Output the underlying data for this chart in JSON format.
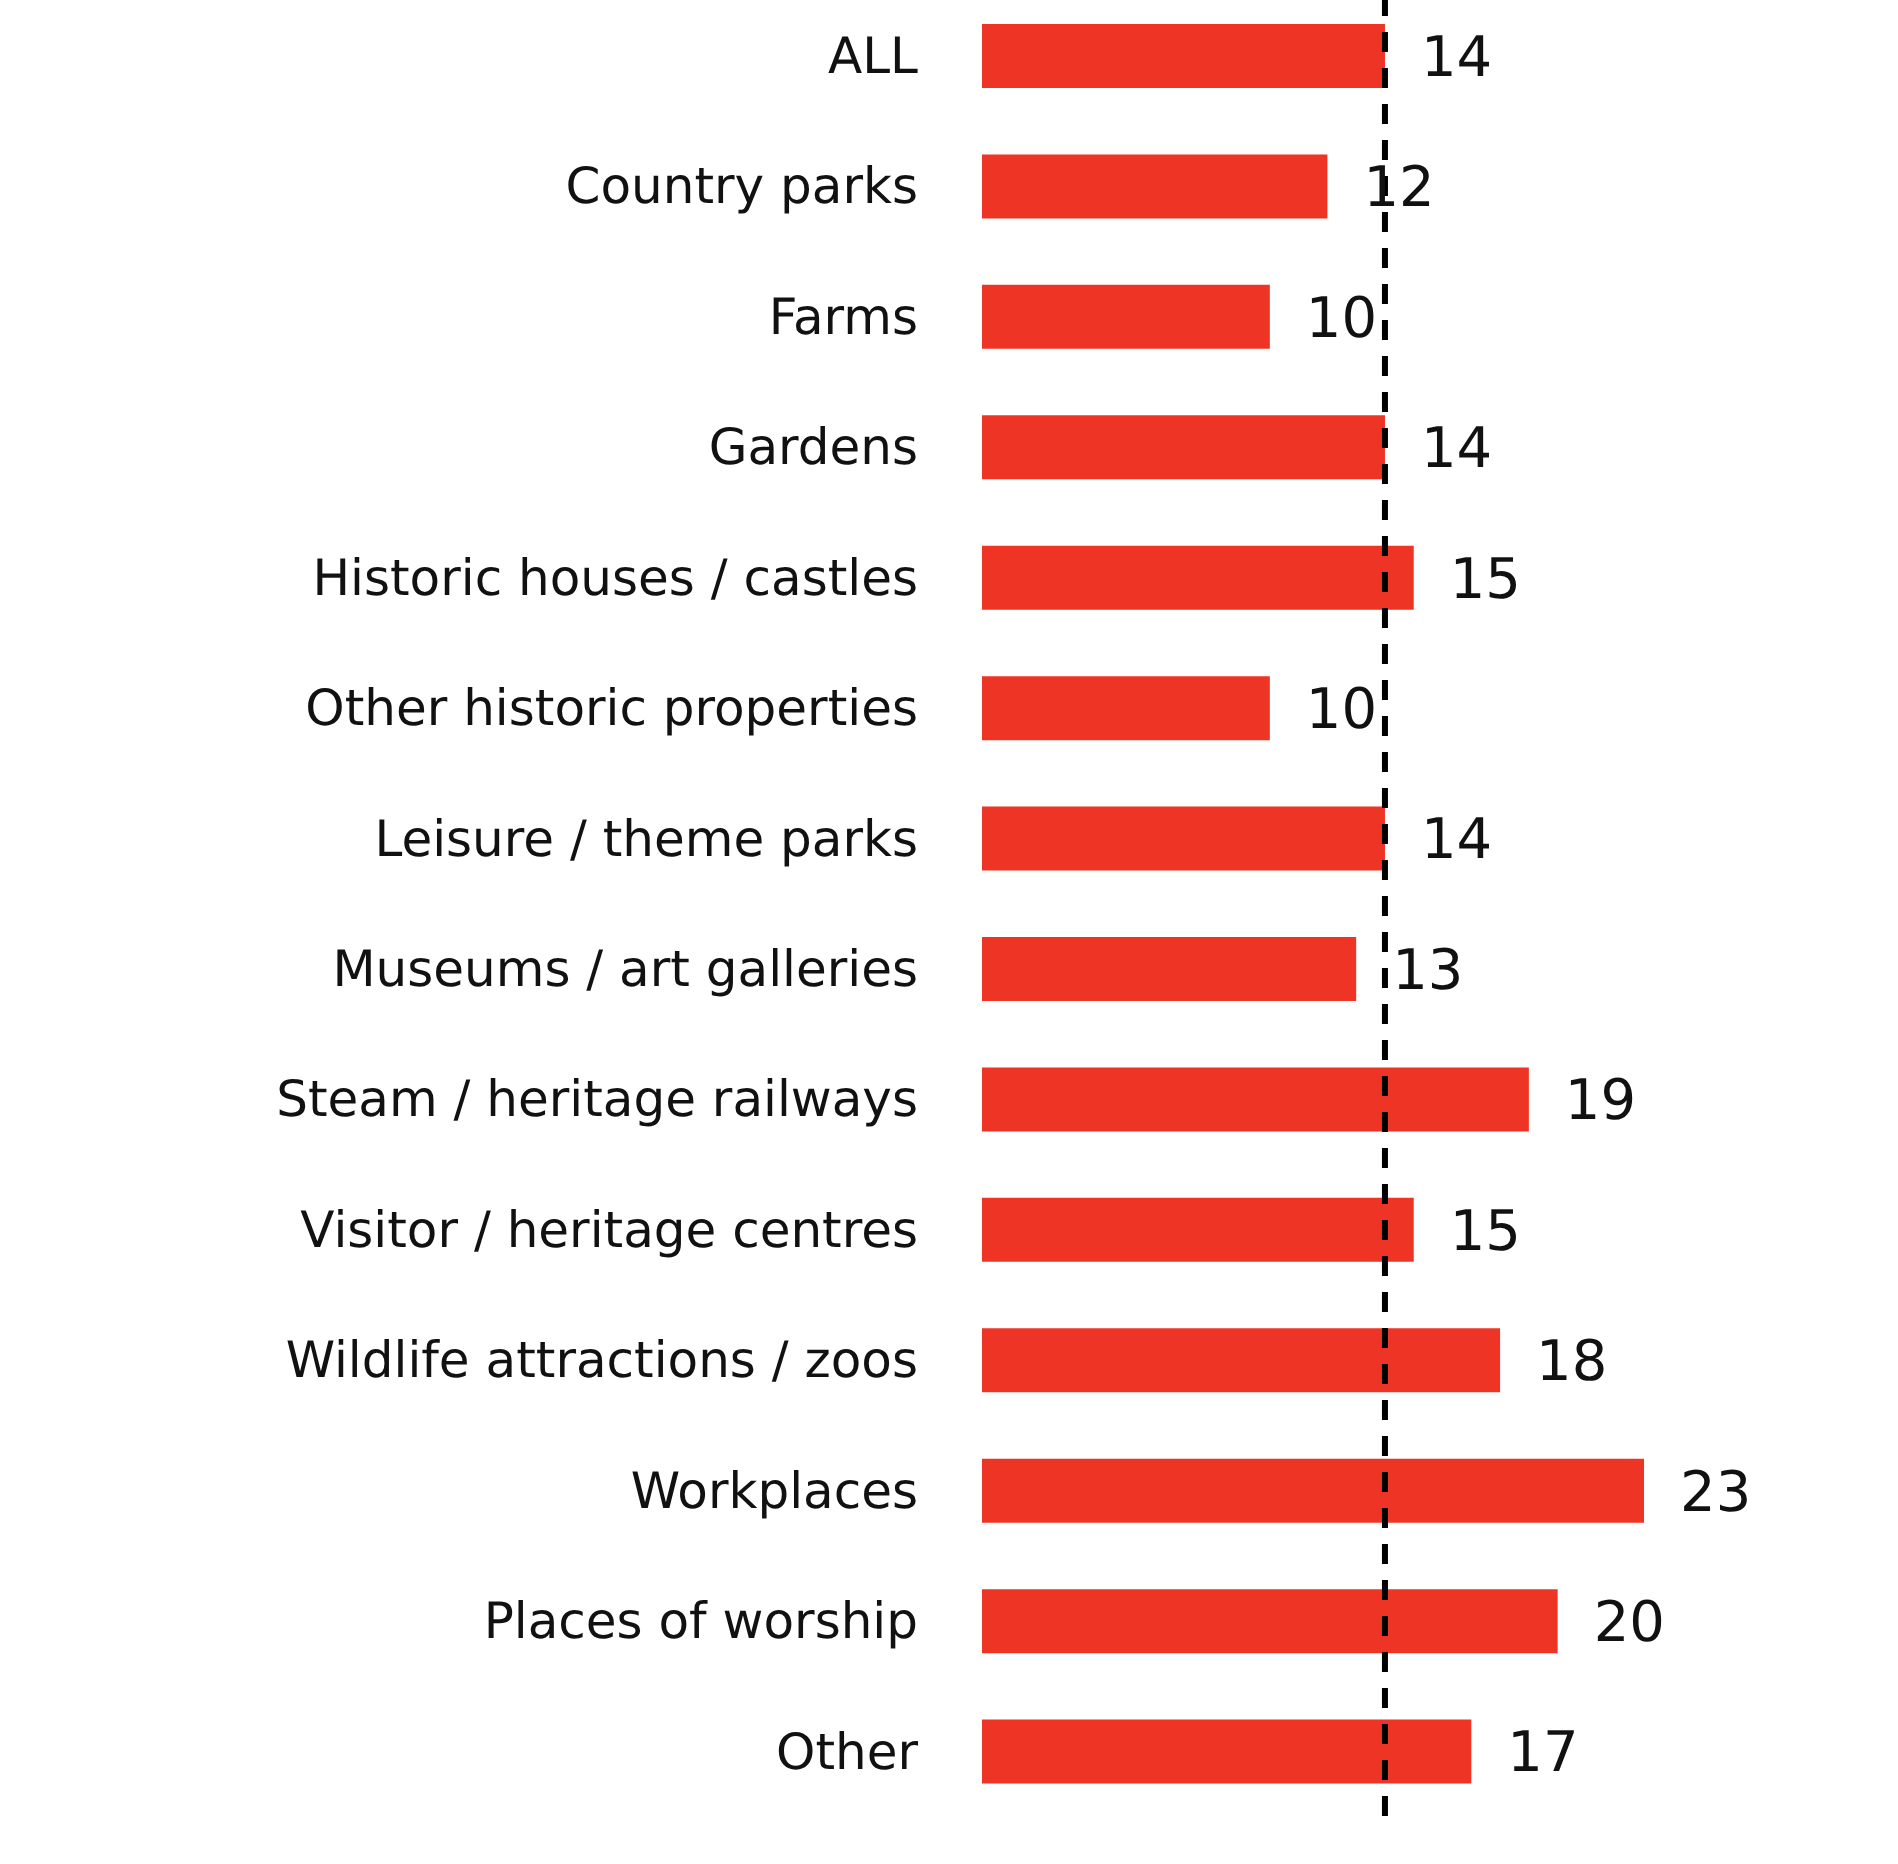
{
  "chart_data": {
    "type": "bar",
    "orientation": "horizontal",
    "categories": [
      "ALL",
      "Country parks",
      "Farms",
      "Gardens",
      "Historic houses / castles",
      "Other historic properties",
      "Leisure / theme parks",
      "Museums / art galleries",
      "Steam / heritage railways",
      "Visitor / heritage centres",
      "Wildlife attractions / zoos",
      "Workplaces",
      "Places of worship",
      "Other"
    ],
    "values": [
      14,
      12,
      10,
      14,
      15,
      10,
      14,
      13,
      19,
      15,
      18,
      23,
      20,
      17
    ],
    "color": "#ee3424",
    "data_labels": true,
    "tick_labels": "y",
    "grid": false,
    "ref_lines": [
      {
        "axis": "x",
        "value": 14,
        "label": null,
        "color": "#000000",
        "line_style": "dashed"
      }
    ]
  }
}
